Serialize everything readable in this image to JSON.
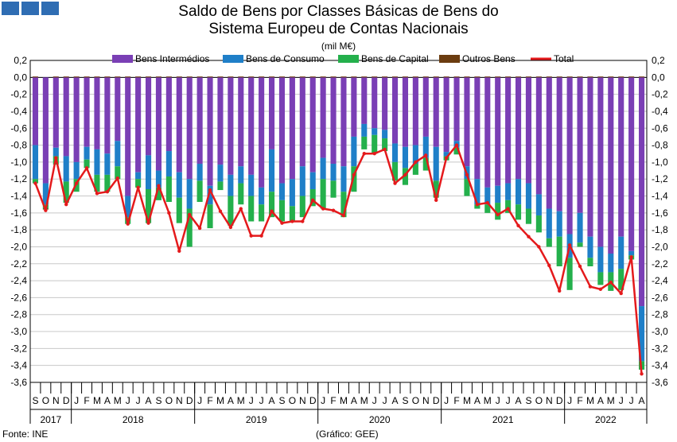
{
  "title_line1": "Saldo de Bens por Classes Básicas de Bens do",
  "title_line2": "Sistema Europeu de Contas Nacionais",
  "unit": "(mil M€)",
  "source": "Fonte: INE",
  "credit": "(Gráfico: GEE)",
  "colors": {
    "intermedios": "#7a3fb5",
    "consumo": "#1f7fc8",
    "capital": "#24b04c",
    "outros": "#6b3c10",
    "total": "#e41a1c"
  },
  "chart_data": {
    "type": "bar",
    "stacked": true,
    "ylim": [
      -3.6,
      0.2
    ],
    "yticks": [
      "0,2",
      "0,0",
      "-0,2",
      "-0,4",
      "-0,6",
      "-0,8",
      "-1,0",
      "-1,2",
      "-1,4",
      "-1,6",
      "-1,8",
      "-2,0",
      "-2,2",
      "-2,4",
      "-2,6",
      "-2,8",
      "-3,0",
      "-3,2",
      "-3,4",
      "-3,6"
    ],
    "grid": true,
    "legend_position": "top",
    "categories": [
      "S",
      "O",
      "N",
      "D",
      "J",
      "F",
      "M",
      "A",
      "M",
      "J",
      "J",
      "A",
      "S",
      "O",
      "N",
      "D",
      "J",
      "F",
      "M",
      "A",
      "M",
      "J",
      "J",
      "A",
      "S",
      "O",
      "N",
      "D",
      "J",
      "F",
      "M",
      "A",
      "M",
      "J",
      "J",
      "A",
      "S",
      "O",
      "N",
      "D",
      "J",
      "F",
      "M",
      "A",
      "M",
      "J",
      "J",
      "A",
      "S",
      "O",
      "N",
      "D",
      "J",
      "F",
      "M",
      "A",
      "M",
      "J",
      "J",
      "A"
    ],
    "years": [
      {
        "label": "2017",
        "start": 0,
        "count": 4
      },
      {
        "label": "2018",
        "start": 4,
        "count": 12
      },
      {
        "label": "2019",
        "start": 16,
        "count": 12
      },
      {
        "label": "2020",
        "start": 28,
        "count": 12
      },
      {
        "label": "2021",
        "start": 40,
        "count": 12
      },
      {
        "label": "2022",
        "start": 52,
        "count": 8
      }
    ],
    "series": [
      {
        "name": "Bens Intermédios",
        "key": "intermedios",
        "values": [
          -0.8,
          -1.25,
          -0.83,
          -0.93,
          -1.0,
          -0.82,
          -0.85,
          -0.9,
          -0.75,
          -1.4,
          -1.12,
          -0.92,
          -1.1,
          -0.87,
          -1.12,
          -1.2,
          -1.02,
          -1.28,
          -1.03,
          -1.15,
          -1.05,
          -1.15,
          -1.3,
          -0.85,
          -1.25,
          -1.2,
          -1.05,
          -1.12,
          -0.95,
          -1.02,
          -1.05,
          -0.7,
          -0.55,
          -0.6,
          -0.62,
          -0.78,
          -0.82,
          -0.8,
          -0.7,
          -0.82,
          -0.88,
          -0.75,
          -1.05,
          -1.2,
          -1.3,
          -1.28,
          -1.25,
          -1.2,
          -1.25,
          -1.38,
          -1.55,
          -1.58,
          -1.85,
          -1.6,
          -1.88,
          -2.0,
          -2.08,
          -1.88,
          -2.05,
          -2.7
        ],
        "values_note": ""
      },
      {
        "name": "Bens de Consumo",
        "key": "consumo",
        "values": [
          -0.4,
          -0.25,
          -0.1,
          -0.3,
          -0.2,
          -0.15,
          -0.3,
          -0.25,
          -0.3,
          -0.25,
          -0.08,
          -0.4,
          -0.2,
          -0.3,
          -0.3,
          -0.35,
          -0.2,
          -0.22,
          -0.2,
          -0.25,
          -0.2,
          -0.25,
          -0.2,
          -0.5,
          -0.2,
          -0.32,
          -0.35,
          -0.2,
          -0.25,
          -0.2,
          -0.3,
          -0.35,
          -0.15,
          -0.08,
          -0.1,
          -0.22,
          -0.25,
          -0.22,
          -0.25,
          -0.4,
          -0.05,
          -0.08,
          -0.15,
          -0.3,
          -0.2,
          -0.2,
          -0.2,
          -0.3,
          -0.3,
          -0.25,
          -0.35,
          -0.3,
          -0.28,
          -0.35,
          -0.25,
          -0.3,
          -0.22,
          -0.38,
          -0.05,
          -0.65
        ]
      },
      {
        "name": "Bens de Capital",
        "key": "capital",
        "values": [
          -0.05,
          -0.05,
          -0.1,
          -0.25,
          -0.15,
          -0.1,
          -0.2,
          -0.2,
          -0.15,
          -0.08,
          -0.1,
          -0.4,
          -0.15,
          -0.3,
          -0.3,
          -0.45,
          -0.25,
          -0.28,
          -0.1,
          -0.35,
          -0.25,
          -0.3,
          -0.2,
          -0.3,
          -0.25,
          -0.18,
          -0.25,
          -0.2,
          -0.35,
          -0.2,
          -0.3,
          -0.3,
          -0.15,
          -0.22,
          -0.15,
          -0.22,
          -0.2,
          -0.13,
          -0.15,
          -0.2,
          -0.05,
          -0.08,
          -0.2,
          -0.05,
          -0.1,
          -0.2,
          -0.15,
          -0.18,
          -0.18,
          -0.2,
          -0.1,
          -0.35,
          -0.38,
          -0.05,
          -0.1,
          -0.15,
          -0.22,
          -0.25,
          -0.05,
          -0.1
        ]
      },
      {
        "name": "Outros Bens",
        "key": "outros",
        "values": [
          0.01,
          -0.01,
          0.01,
          0.01,
          0.01,
          0.01,
          0.01,
          0.01,
          0.01,
          0.01,
          0.01,
          0.01,
          0.01,
          0.01,
          0.01,
          0.01,
          0.01,
          0.01,
          0.01,
          0.01,
          0.01,
          0.01,
          0.01,
          0.01,
          0.01,
          0.01,
          0.01,
          0.01,
          0.01,
          0.01,
          0.01,
          0.01,
          0.01,
          0.01,
          0.01,
          0.01,
          0.01,
          0.01,
          0.01,
          0.01,
          0.01,
          0.01,
          0.01,
          0.01,
          0.01,
          0.01,
          0.01,
          0.01,
          0.01,
          0.01,
          0.01,
          0.01,
          0.01,
          0.01,
          0.01,
          0.01,
          0.01,
          0.01,
          0.01,
          0.01
        ]
      },
      {
        "name": "Total",
        "key": "total",
        "type": "line",
        "values": [
          -1.25,
          -1.57,
          -0.95,
          -1.5,
          -1.25,
          -1.07,
          -1.37,
          -1.35,
          -1.19,
          -1.73,
          -1.3,
          -1.72,
          -1.28,
          -1.6,
          -2.05,
          -1.62,
          -1.78,
          -1.33,
          -1.58,
          -1.77,
          -1.55,
          -1.87,
          -1.87,
          -1.58,
          -1.72,
          -1.7,
          -1.7,
          -1.45,
          -1.55,
          -1.57,
          -1.63,
          -1.15,
          -0.9,
          -0.9,
          -0.85,
          -1.25,
          -1.15,
          -1.0,
          -0.92,
          -1.45,
          -0.95,
          -0.8,
          -1.15,
          -1.5,
          -1.48,
          -1.62,
          -1.55,
          -1.75,
          -1.88,
          -2.0,
          -2.22,
          -2.52,
          -1.98,
          -2.23,
          -2.47,
          -2.5,
          -2.42,
          -2.55,
          -2.12,
          -3.5
        ]
      }
    ]
  }
}
